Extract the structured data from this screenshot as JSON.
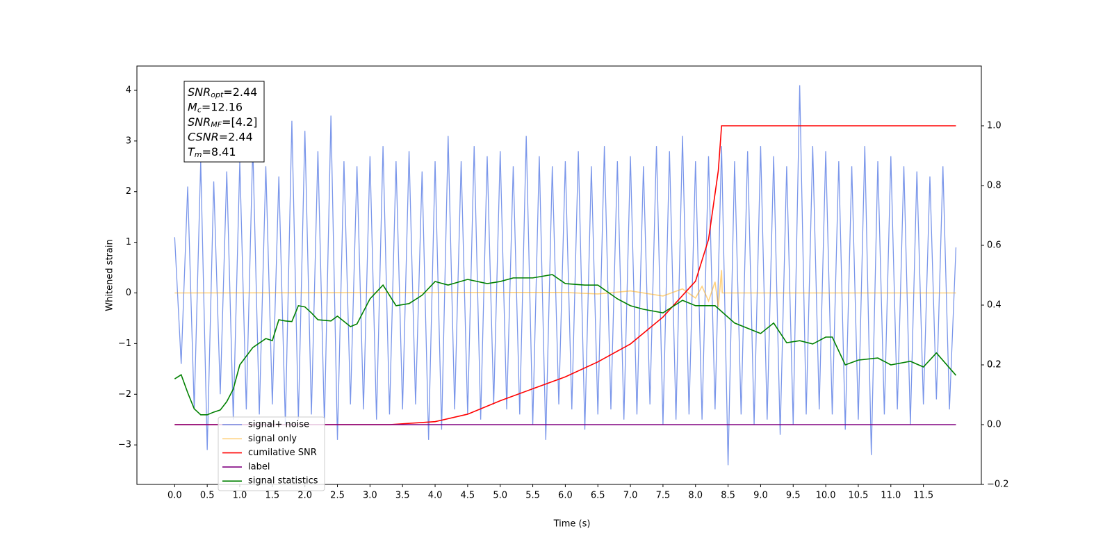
{
  "chart_data": {
    "type": "line",
    "xlabel": "Time (s)",
    "ylabel": "Whitened strain",
    "xlim": [
      -0.58,
      12.39
    ],
    "ylim": [
      -3.78,
      4.48
    ],
    "y2lim": [
      -0.2,
      1.2
    ],
    "xticks": [
      {
        "value": 0,
        "label": "0.0"
      },
      {
        "value": 0.5,
        "label": "0.5"
      },
      {
        "value": 1,
        "label": "1.0"
      },
      {
        "value": 1.5,
        "label": "1.5"
      },
      {
        "value": 2,
        "label": "2.0"
      },
      {
        "value": 2.5,
        "label": "2.5"
      },
      {
        "value": 3,
        "label": "3.0"
      },
      {
        "value": 3.5,
        "label": "3.5"
      },
      {
        "value": 4,
        "label": "4.0"
      },
      {
        "value": 4.5,
        "label": "4.5"
      },
      {
        "value": 5,
        "label": "5.0"
      },
      {
        "value": 5.5,
        "label": "5.5"
      },
      {
        "value": 6,
        "label": "6.0"
      },
      {
        "value": 6.5,
        "label": "6.5"
      },
      {
        "value": 7,
        "label": "7.0"
      },
      {
        "value": 7.5,
        "label": "7.5"
      },
      {
        "value": 8,
        "label": "8.0"
      },
      {
        "value": 8.5,
        "label": "8.5"
      },
      {
        "value": 9,
        "label": "9.0"
      },
      {
        "value": 9.5,
        "label": "9.5"
      },
      {
        "value": 10,
        "label": "10.0"
      },
      {
        "value": 10.5,
        "label": "10.5"
      },
      {
        "value": 11,
        "label": "11.0"
      },
      {
        "value": 11.5,
        "label": "11.5"
      }
    ],
    "yticks": [
      {
        "value": -3,
        "label": "−3"
      },
      {
        "value": -2,
        "label": "−2"
      },
      {
        "value": -1,
        "label": "−1"
      },
      0,
      1,
      2,
      3,
      4
    ],
    "y2ticks": [
      {
        "value": -0.2,
        "label": "−0.2"
      },
      {
        "value": 0,
        "label": "0.0"
      },
      0.2,
      0.4,
      0.6,
      0.8,
      {
        "value": 1,
        "label": "1.0"
      },
      0.2
    ],
    "legend": "lower left",
    "annotation": [
      {
        "base": "SNR",
        "sub": "opt",
        "rest": "=2.44"
      },
      {
        "base": "M",
        "sub": "c",
        "rest": "=12.16"
      },
      {
        "base": "SNR",
        "sub": "MF",
        "rest": "=[4.2]"
      },
      {
        "base": "CSNR",
        "sub": "",
        "rest": "=2.44"
      },
      {
        "base": "T",
        "sub": "m",
        "rest": "=8.41"
      }
    ],
    "series": [
      {
        "name": "signal+ noise",
        "color": "#4169e1",
        "opacity": 0.7,
        "axis": "y",
        "x": [
          0,
          0.1,
          0.2,
          0.3,
          0.4,
          0.5,
          0.6,
          0.7,
          0.8,
          0.9,
          1,
          1.1,
          1.2,
          1.3,
          1.4,
          1.5,
          1.6,
          1.7,
          1.8,
          1.9,
          2,
          2.1,
          2.2,
          2.3,
          2.4,
          2.5,
          2.6,
          2.7,
          2.8,
          2.9,
          3,
          3.1,
          3.2,
          3.3,
          3.4,
          3.5,
          3.6,
          3.7,
          3.8,
          3.9,
          4,
          4.1,
          4.2,
          4.3,
          4.4,
          4.5,
          4.6,
          4.7,
          4.8,
          4.9,
          5,
          5.1,
          5.2,
          5.3,
          5.4,
          5.5,
          5.6,
          5.7,
          5.8,
          5.9,
          6,
          6.1,
          6.2,
          6.3,
          6.4,
          6.5,
          6.6,
          6.7,
          6.8,
          6.9,
          7,
          7.1,
          7.2,
          7.3,
          7.4,
          7.5,
          7.6,
          7.7,
          7.8,
          7.9,
          8,
          8.1,
          8.2,
          8.3,
          8.4,
          8.5,
          8.6,
          8.7,
          8.8,
          8.9,
          9,
          9.1,
          9.2,
          9.3,
          9.4,
          9.5,
          9.6,
          9.7,
          9.8,
          9.9,
          10,
          10.1,
          10.2,
          10.3,
          10.4,
          10.5,
          10.6,
          10.7,
          10.8,
          10.9,
          11,
          11.1,
          11.2,
          11.3,
          11.4,
          11.5,
          11.6,
          11.7,
          11.8,
          11.9,
          12
        ],
        "values": [
          1.1,
          -1.4,
          2.1,
          -2.3,
          2.6,
          -3.1,
          2.2,
          -2.0,
          2.4,
          -2.5,
          2.6,
          -2.3,
          2.9,
          -2.4,
          2.5,
          -2.2,
          2.3,
          -2.6,
          3.4,
          -2.5,
          3.2,
          -2.4,
          2.8,
          -2.6,
          3.5,
          -2.9,
          2.6,
          -2.2,
          2.5,
          -2.3,
          2.7,
          -2.5,
          2.9,
          -2.4,
          2.6,
          -2.3,
          2.8,
          -2.2,
          2.4,
          -2.9,
          2.6,
          -2.7,
          3.1,
          -2.3,
          2.6,
          -2.4,
          2.9,
          -2.5,
          2.7,
          -2.2,
          2.8,
          -2.3,
          2.5,
          -2.4,
          3.1,
          -2.6,
          2.7,
          -2.9,
          2.5,
          -2.2,
          2.6,
          -2.3,
          2.8,
          -2.7,
          2.5,
          -2.4,
          2.9,
          -2.3,
          2.6,
          -2.5,
          2.7,
          -2.4,
          2.5,
          -2.2,
          2.9,
          -2.6,
          2.8,
          -2.5,
          3.1,
          -2.4,
          2.6,
          -2.5,
          2.7,
          -2.3,
          2.9,
          -3.4,
          2.6,
          -2.4,
          2.8,
          -2.6,
          2.9,
          -2.5,
          2.7,
          -2.8,
          2.5,
          -2.6,
          4.1,
          -2.4,
          2.9,
          -2.3,
          2.8,
          -2.4,
          2.6,
          -2.7,
          2.5,
          -2.5,
          2.9,
          -3.2,
          2.6,
          -2.4,
          2.7,
          -2.3,
          2.5,
          -2.6,
          2.4,
          -2.2,
          2.3,
          -2.1,
          2.5,
          -2.3,
          0.9
        ]
      },
      {
        "name": "signal only",
        "color": "#ffa500",
        "opacity": 0.5,
        "axis": "y",
        "x": [
          0,
          6,
          6.5,
          7,
          7.5,
          7.8,
          8,
          8.1,
          8.2,
          8.3,
          8.35,
          8.4,
          8.41,
          12
        ],
        "values": [
          0,
          0.01,
          -0.02,
          0.04,
          -0.06,
          0.08,
          -0.1,
          0.13,
          -0.16,
          0.22,
          -0.28,
          0.45,
          0,
          0
        ]
      },
      {
        "name": "cumilative SNR",
        "color": "#ff0000",
        "opacity": 1,
        "axis": "y2",
        "x": [
          0,
          3.3,
          4,
          4.5,
          5,
          5.5,
          6,
          6.5,
          7,
          7.5,
          8,
          8.2,
          8.35,
          8.4,
          12
        ],
        "values": [
          0,
          0,
          0.01,
          0.035,
          0.08,
          0.12,
          0.16,
          0.21,
          0.27,
          0.36,
          0.48,
          0.62,
          0.85,
          1,
          1
        ]
      },
      {
        "name": "label",
        "color": "#800080",
        "opacity": 1,
        "axis": "y2",
        "x": [
          0,
          12
        ],
        "values": [
          0,
          0
        ]
      },
      {
        "name": "signal statistics",
        "color": "#008000",
        "opacity": 1,
        "axis": "y2",
        "x": [
          0,
          0.1,
          0.2,
          0.3,
          0.4,
          0.5,
          0.6,
          0.7,
          0.8,
          0.9,
          1,
          1.2,
          1.4,
          1.5,
          1.6,
          1.7,
          1.8,
          1.9,
          2,
          2.1,
          2.2,
          2.4,
          2.5,
          2.7,
          2.8,
          3,
          3.2,
          3.4,
          3.6,
          3.8,
          4,
          4.2,
          4.5,
          4.8,
          5,
          5.2,
          5.5,
          5.8,
          6,
          6.3,
          6.5,
          6.8,
          7,
          7.2,
          7.5,
          7.8,
          8,
          8.3,
          8.6,
          9,
          9.2,
          9.4,
          9.6,
          9.8,
          10,
          10.1,
          10.3,
          10.5,
          10.8,
          11,
          11.3,
          11.5,
          11.7,
          12
        ],
        "values": [
          0.153,
          0.167,
          0.107,
          0.053,
          0.033,
          0.033,
          0.042,
          0.049,
          0.077,
          0.119,
          0.2,
          0.258,
          0.288,
          0.281,
          0.351,
          0.347,
          0.345,
          0.398,
          0.394,
          0.374,
          0.351,
          0.347,
          0.363,
          0.328,
          0.337,
          0.421,
          0.467,
          0.398,
          0.405,
          0.433,
          0.479,
          0.467,
          0.486,
          0.472,
          0.479,
          0.491,
          0.491,
          0.502,
          0.472,
          0.467,
          0.467,
          0.421,
          0.398,
          0.386,
          0.374,
          0.416,
          0.398,
          0.398,
          0.34,
          0.305,
          0.34,
          0.274,
          0.281,
          0.27,
          0.293,
          0.293,
          0.2,
          0.216,
          0.223,
          0.2,
          0.212,
          0.193,
          0.24,
          0.165
        ]
      }
    ]
  }
}
